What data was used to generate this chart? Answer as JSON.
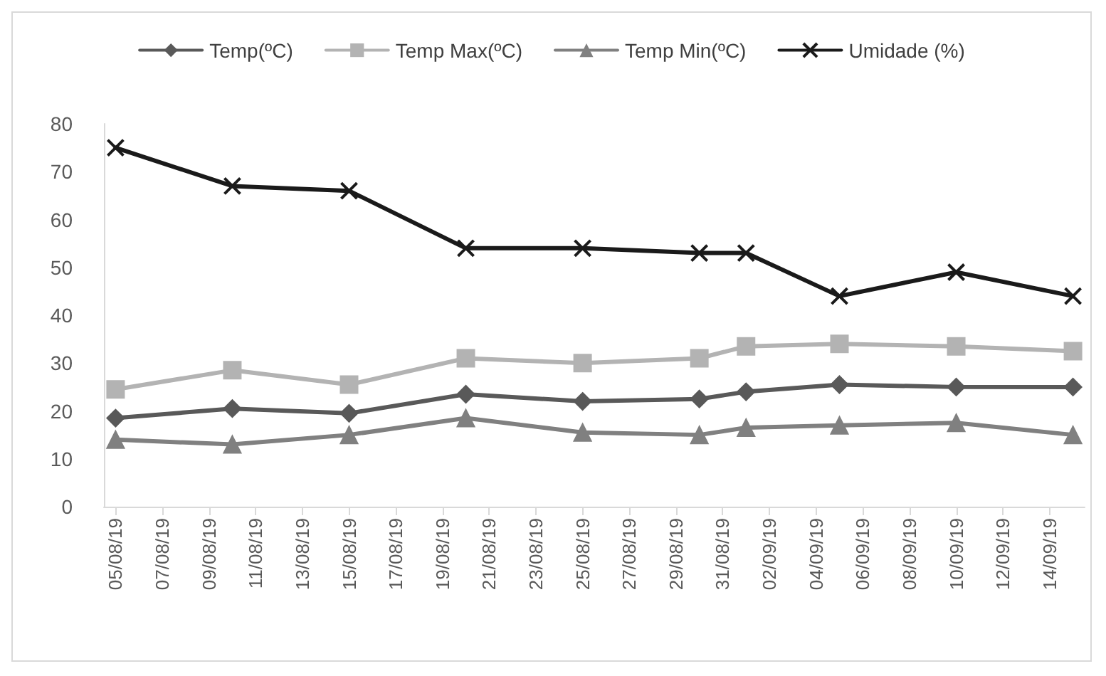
{
  "chart_data": {
    "type": "line",
    "x": [
      "--08-05",
      "--08-10",
      "--08-15",
      "--08-20",
      "--08-25",
      "--08-30",
      "--09-01",
      "--09-05",
      "--09-10",
      "--09-15"
    ],
    "series": [
      {
        "name": "Temp(ºC)",
        "color": "#595959",
        "marker": "diamond",
        "values": [
          18.5,
          20.5,
          19.5,
          23.5,
          22,
          22.5,
          24,
          25.5,
          25,
          25
        ]
      },
      {
        "name": "Temp Max(ºC)",
        "color": "#b3b3b3",
        "marker": "square",
        "values": [
          24.5,
          28.5,
          25.5,
          31,
          30,
          31,
          33.5,
          34,
          33.5,
          32.5
        ]
      },
      {
        "name": "Temp Min(ºC)",
        "color": "#808080",
        "marker": "triangle",
        "values": [
          14,
          13,
          15,
          18.5,
          15.5,
          15,
          16.5,
          17,
          17.5,
          15
        ]
      },
      {
        "name": "Umidade (%)",
        "color": "#1a1a1a",
        "marker": "cross",
        "values": [
          75,
          67,
          66,
          54,
          54,
          53,
          53,
          44,
          49,
          44
        ]
      }
    ],
    "xlim": [
      "--08-04T12:00",
      "--09-15T12:00"
    ],
    "xticks": [
      {
        "value": "--08-05",
        "label": "05/08/19"
      },
      {
        "value": "--08-07",
        "label": "07/08/19"
      },
      {
        "value": "--08-09",
        "label": "09/08/19"
      },
      {
        "value": "--08-11",
        "label": "11/08/19"
      },
      {
        "value": "--08-13",
        "label": "13/08/19"
      },
      {
        "value": "--08-15",
        "label": "15/08/19"
      },
      {
        "value": "--08-17",
        "label": "17/08/19"
      },
      {
        "value": "--08-19",
        "label": "19/08/19"
      },
      {
        "value": "--08-21",
        "label": "21/08/19"
      },
      {
        "value": "--08-23",
        "label": "23/08/19"
      },
      {
        "value": "--08-25",
        "label": "25/08/19"
      },
      {
        "value": "--08-27",
        "label": "27/08/19"
      },
      {
        "value": "--08-29",
        "label": "29/08/19"
      },
      {
        "value": "--08-31",
        "label": "31/08/19"
      },
      {
        "value": "--09-02",
        "label": "02/09/19"
      },
      {
        "value": "--09-04",
        "label": "04/09/19"
      },
      {
        "value": "--09-06",
        "label": "06/09/19"
      },
      {
        "value": "--09-08",
        "label": "08/09/19"
      },
      {
        "value": "--09-10",
        "label": "10/09/19"
      },
      {
        "value": "--09-12",
        "label": "12/09/19"
      },
      {
        "value": "--09-14",
        "label": "14/09/19"
      }
    ],
    "ylim": [
      0,
      80
    ],
    "yticks": [
      0,
      10,
      20,
      30,
      40,
      50,
      60,
      70,
      80
    ],
    "grid": false,
    "legend": "top",
    "line_style": "solid"
  }
}
